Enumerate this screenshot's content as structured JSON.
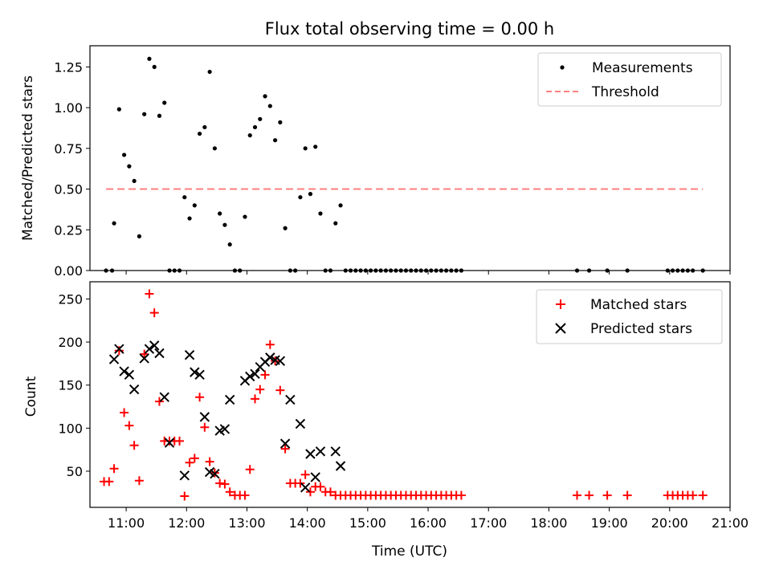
{
  "chart_data": [
    {
      "type": "scatter",
      "title": "Flux total observing time = 0.00 h",
      "xlabel": "",
      "ylabel": "Matched/Predicted stars",
      "xlim": [
        "10:24",
        "21:00"
      ],
      "ylim": [
        0,
        1.38
      ],
      "yticks": [
        0.0,
        0.25,
        0.5,
        0.75,
        1.0,
        1.25
      ],
      "ytick_labels": [
        "0.00",
        "0.25",
        "0.50",
        "0.75",
        "1.00",
        "1.25"
      ],
      "legend": {
        "position": "upper right",
        "entries": [
          "Measurements",
          "Threshold"
        ]
      },
      "colors": {
        "measurements": "#000000",
        "threshold": "#ff7f7f"
      },
      "series": [
        {
          "name": "Measurements",
          "marker": "dot",
          "points": [
            [
              "10:40",
              0
            ],
            [
              "10:46",
              0
            ],
            [
              "10:48",
              0.29
            ],
            [
              "10:53",
              0.99
            ],
            [
              "10:58",
              0.71
            ],
            [
              "11:03",
              0.64
            ],
            [
              "11:08",
              0.55
            ],
            [
              "11:13",
              0.21
            ],
            [
              "11:18",
              0.96
            ],
            [
              "11:23",
              1.3
            ],
            [
              "11:28",
              1.25
            ],
            [
              "11:33",
              0.95
            ],
            [
              "11:38",
              1.03
            ],
            [
              "11:43",
              0
            ],
            [
              "11:48",
              0
            ],
            [
              "11:53",
              0
            ],
            [
              "11:58",
              0.45
            ],
            [
              "12:03",
              0.32
            ],
            [
              "12:08",
              0.4
            ],
            [
              "12:13",
              0.84
            ],
            [
              "12:18",
              0.88
            ],
            [
              "12:23",
              1.22
            ],
            [
              "12:28",
              0.75
            ],
            [
              "12:33",
              0.35
            ],
            [
              "12:38",
              0.28
            ],
            [
              "12:43",
              0.16
            ],
            [
              "12:48",
              0
            ],
            [
              "12:53",
              0
            ],
            [
              "12:58",
              0.33
            ],
            [
              "13:03",
              0.83
            ],
            [
              "13:08",
              0.88
            ],
            [
              "13:13",
              0.93
            ],
            [
              "13:18",
              1.07
            ],
            [
              "13:23",
              1.01
            ],
            [
              "13:28",
              0.8
            ],
            [
              "13:33",
              0.91
            ],
            [
              "13:38",
              0.26
            ],
            [
              "13:43",
              0
            ],
            [
              "13:48",
              0
            ],
            [
              "13:53",
              0.45
            ],
            [
              "13:58",
              0.75
            ],
            [
              "14:03",
              0.47
            ],
            [
              "14:08",
              0.76
            ],
            [
              "14:13",
              0.35
            ],
            [
              "14:18",
              0
            ],
            [
              "14:23",
              0
            ],
            [
              "14:28",
              0.29
            ],
            [
              "14:33",
              0.4
            ],
            [
              "14:38",
              0
            ],
            [
              "14:43",
              0
            ],
            [
              "14:48",
              0
            ],
            [
              "14:53",
              0
            ],
            [
              "14:58",
              0
            ],
            [
              "15:03",
              0
            ],
            [
              "15:08",
              0
            ],
            [
              "15:13",
              0
            ],
            [
              "15:18",
              0
            ],
            [
              "15:23",
              0
            ],
            [
              "15:28",
              0
            ],
            [
              "15:33",
              0
            ],
            [
              "15:38",
              0
            ],
            [
              "15:43",
              0
            ],
            [
              "15:48",
              0
            ],
            [
              "15:53",
              0
            ],
            [
              "15:58",
              0
            ],
            [
              "16:03",
              0
            ],
            [
              "16:08",
              0
            ],
            [
              "16:13",
              0
            ],
            [
              "16:18",
              0
            ],
            [
              "16:23",
              0
            ],
            [
              "16:28",
              0
            ],
            [
              "16:33",
              0
            ],
            [
              "18:28",
              0
            ],
            [
              "18:40",
              0
            ],
            [
              "18:58",
              0
            ],
            [
              "19:18",
              0
            ],
            [
              "19:58",
              0
            ],
            [
              "20:03",
              0
            ],
            [
              "20:08",
              0
            ],
            [
              "20:13",
              0
            ],
            [
              "20:18",
              0
            ],
            [
              "20:23",
              0
            ],
            [
              "20:33",
              0
            ]
          ]
        },
        {
          "name": "Threshold",
          "style": "dashed",
          "points": [
            [
              "10:40",
              0.5
            ],
            [
              "20:33",
              0.5
            ]
          ]
        }
      ]
    },
    {
      "type": "scatter",
      "title": "",
      "xlabel": "Time (UTC)",
      "ylabel": "Count",
      "xlim": [
        "10:24",
        "21:00"
      ],
      "ylim": [
        8,
        270
      ],
      "yticks": [
        50,
        100,
        150,
        200,
        250
      ],
      "ytick_labels": [
        "50",
        "100",
        "150",
        "200",
        "250"
      ],
      "xticks": [
        "11:00",
        "12:00",
        "13:00",
        "14:00",
        "15:00",
        "16:00",
        "17:00",
        "18:00",
        "19:00",
        "20:00",
        "21:00"
      ],
      "legend": {
        "position": "upper right",
        "entries": [
          "Matched stars",
          "Predicted stars"
        ]
      },
      "colors": {
        "matched": "#ff0000",
        "predicted": "#000000"
      },
      "series": [
        {
          "name": "Matched stars",
          "marker": "plus",
          "points": [
            [
              "10:38",
              38
            ],
            [
              "10:43",
              38
            ],
            [
              "10:48",
              53
            ],
            [
              "10:53",
              190
            ],
            [
              "10:58",
              118
            ],
            [
              "11:03",
              103
            ],
            [
              "11:08",
              80
            ],
            [
              "11:13",
              39
            ],
            [
              "11:18",
              186
            ],
            [
              "11:23",
              256
            ],
            [
              "11:28",
              234
            ],
            [
              "11:33",
              131
            ],
            [
              "11:38",
              85
            ],
            [
              "11:43",
              85
            ],
            [
              "11:48",
              85
            ],
            [
              "11:53",
              85
            ],
            [
              "11:58",
              21
            ],
            [
              "12:03",
              60
            ],
            [
              "12:08",
              65
            ],
            [
              "12:13",
              136
            ],
            [
              "12:18",
              101
            ],
            [
              "12:23",
              61
            ],
            [
              "12:28",
              48
            ],
            [
              "12:33",
              36
            ],
            [
              "12:38",
              35
            ],
            [
              "12:43",
              26
            ],
            [
              "12:48",
              22
            ],
            [
              "12:53",
              22
            ],
            [
              "12:58",
              22
            ],
            [
              "13:03",
              52
            ],
            [
              "13:08",
              134
            ],
            [
              "13:13",
              145
            ],
            [
              "13:18",
              162
            ],
            [
              "13:23",
              197
            ],
            [
              "13:28",
              178
            ],
            [
              "13:33",
              144
            ],
            [
              "13:38",
              76
            ],
            [
              "13:43",
              36
            ],
            [
              "13:48",
              36
            ],
            [
              "13:53",
              36
            ],
            [
              "13:58",
              46
            ],
            [
              "14:03",
              26
            ],
            [
              "14:08",
              32
            ],
            [
              "14:13",
              32
            ],
            [
              "14:18",
              26
            ],
            [
              "14:23",
              26
            ],
            [
              "14:28",
              22
            ],
            [
              "14:33",
              22
            ],
            [
              "14:38",
              22
            ],
            [
              "14:43",
              22
            ],
            [
              "14:48",
              22
            ],
            [
              "14:53",
              22
            ],
            [
              "14:58",
              22
            ],
            [
              "15:03",
              22
            ],
            [
              "15:08",
              22
            ],
            [
              "15:13",
              22
            ],
            [
              "15:18",
              22
            ],
            [
              "15:23",
              22
            ],
            [
              "15:28",
              22
            ],
            [
              "15:33",
              22
            ],
            [
              "15:38",
              22
            ],
            [
              "15:43",
              22
            ],
            [
              "15:48",
              22
            ],
            [
              "15:53",
              22
            ],
            [
              "15:58",
              22
            ],
            [
              "16:03",
              22
            ],
            [
              "16:08",
              22
            ],
            [
              "16:13",
              22
            ],
            [
              "16:18",
              22
            ],
            [
              "16:23",
              22
            ],
            [
              "16:28",
              22
            ],
            [
              "16:33",
              22
            ],
            [
              "18:28",
              22
            ],
            [
              "18:40",
              22
            ],
            [
              "18:58",
              22
            ],
            [
              "19:18",
              22
            ],
            [
              "19:58",
              22
            ],
            [
              "20:03",
              22
            ],
            [
              "20:08",
              22
            ],
            [
              "20:13",
              22
            ],
            [
              "20:18",
              22
            ],
            [
              "20:23",
              22
            ],
            [
              "20:33",
              22
            ]
          ]
        },
        {
          "name": "Predicted stars",
          "marker": "x",
          "points": [
            [
              "10:48",
              180
            ],
            [
              "10:53",
              192
            ],
            [
              "10:58",
              166
            ],
            [
              "11:03",
              162
            ],
            [
              "11:08",
              145
            ],
            [
              "11:18",
              181
            ],
            [
              "11:23",
              192
            ],
            [
              "11:28",
              196
            ],
            [
              "11:33",
              187
            ],
            [
              "11:38",
              136
            ],
            [
              "11:43",
              83
            ],
            [
              "11:58",
              45
            ],
            [
              "12:03",
              185
            ],
            [
              "12:08",
              165
            ],
            [
              "12:13",
              162
            ],
            [
              "12:18",
              113
            ],
            [
              "12:23",
              49
            ],
            [
              "12:28",
              47
            ],
            [
              "12:33",
              97
            ],
            [
              "12:38",
              99
            ],
            [
              "12:43",
              133
            ],
            [
              "12:58",
              155
            ],
            [
              "13:03",
              160
            ],
            [
              "13:08",
              163
            ],
            [
              "13:13",
              171
            ],
            [
              "13:18",
              177
            ],
            [
              "13:23",
              182
            ],
            [
              "13:28",
              179
            ],
            [
              "13:33",
              178
            ],
            [
              "13:38",
              82
            ],
            [
              "13:43",
              133
            ],
            [
              "13:53",
              105
            ],
            [
              "13:58",
              31
            ],
            [
              "14:03",
              70
            ],
            [
              "14:08",
              43
            ],
            [
              "14:13",
              73
            ],
            [
              "14:28",
              73
            ],
            [
              "14:33",
              56
            ]
          ]
        }
      ]
    }
  ]
}
